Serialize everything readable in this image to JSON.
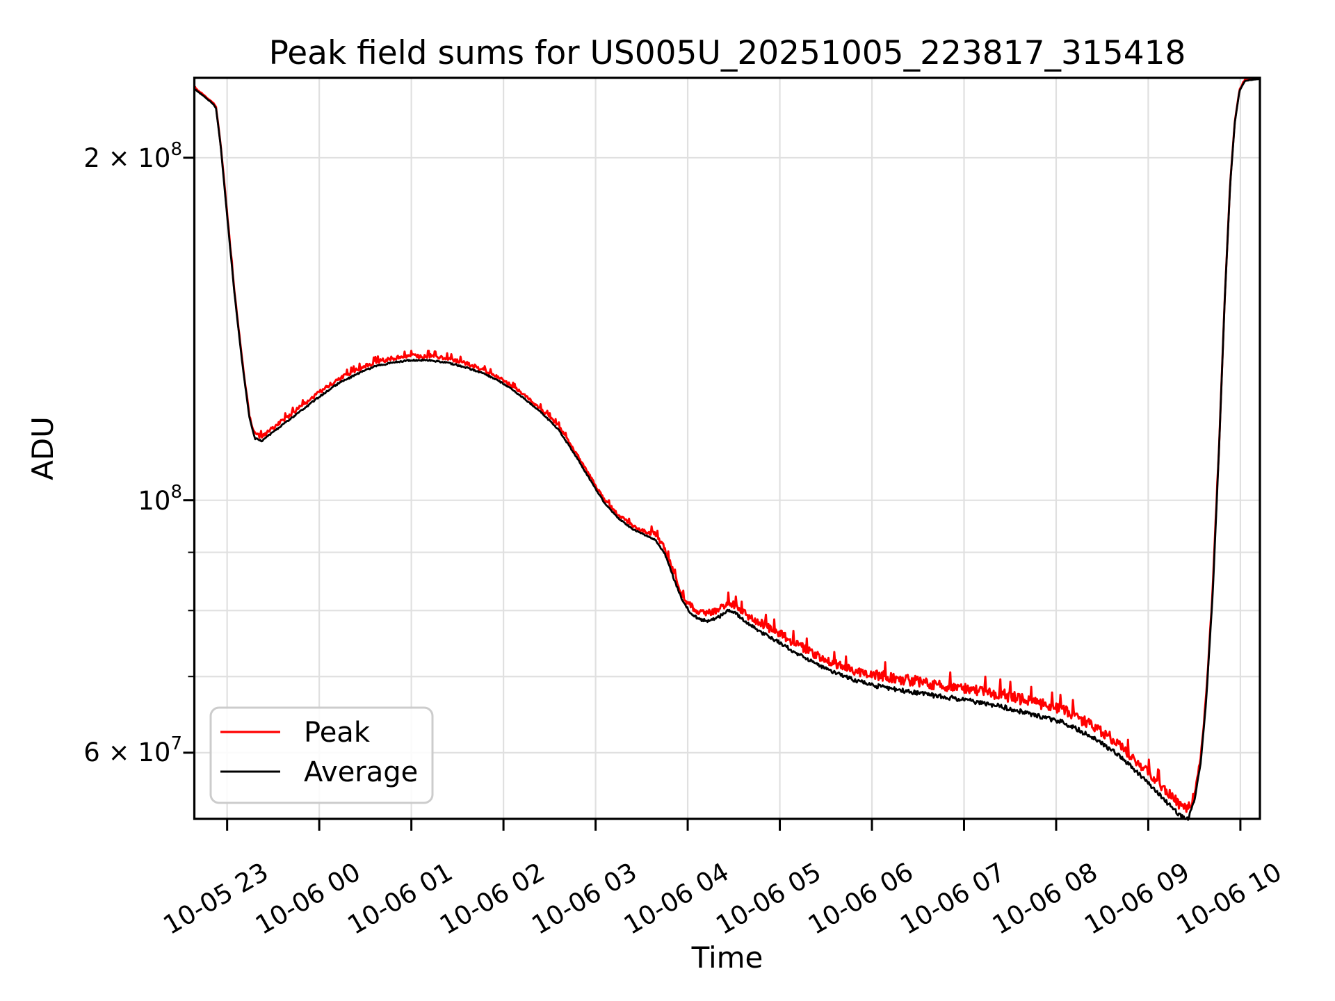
{
  "figure": {
    "background": "#ffffff",
    "frame_color": "#000000",
    "grid_color": "#e0e0e0"
  },
  "legend": {
    "entries": [
      {
        "label": "Peak",
        "color": "#ff0000"
      },
      {
        "label": "Average",
        "color": "#000000"
      }
    ]
  },
  "chart_data": {
    "type": "line",
    "title": "Peak field sums for US005U_20251005_223817_315418",
    "xlabel": "Time",
    "ylabel": "ADU",
    "yscale": "log",
    "grid": true,
    "legend_position": "lower-left",
    "x_unit": "hours since 2025-10-05 00:00",
    "xlim": [
      22.644,
      34.212
    ],
    "ylim": [
      52480000,
      235100000
    ],
    "x_ticks": [
      {
        "t": 23,
        "label": "10-05 23"
      },
      {
        "t": 24,
        "label": "10-06 00"
      },
      {
        "t": 25,
        "label": "10-06 01"
      },
      {
        "t": 26,
        "label": "10-06 02"
      },
      {
        "t": 27,
        "label": "10-06 03"
      },
      {
        "t": 28,
        "label": "10-06 04"
      },
      {
        "t": 29,
        "label": "10-06 05"
      },
      {
        "t": 30,
        "label": "10-06 06"
      },
      {
        "t": 31,
        "label": "10-06 07"
      },
      {
        "t": 32,
        "label": "10-06 08"
      },
      {
        "t": 33,
        "label": "10-06 09"
      },
      {
        "t": 34,
        "label": "10-06 10"
      }
    ],
    "y_ticks": [
      {
        "value": 200000000,
        "mantissa": "2 × 10",
        "exp": "8"
      },
      {
        "value": 100000000,
        "mantissa": "10",
        "exp": "8"
      },
      {
        "value": 60000000,
        "mantissa": "6 × 10",
        "exp": "7"
      }
    ],
    "y_minor_gridlines": [
      90000000,
      80000000,
      70000000
    ],
    "series": [
      {
        "name": "Peak",
        "color": "#ff0000",
        "definition": "average_plus_noise_envelope",
        "noise_segments": [
          {
            "until": 22.95,
            "amp": 0.003
          },
          {
            "until": 23.3,
            "amp": 0.006
          },
          {
            "until": 25.7,
            "amp": 0.011
          },
          {
            "until": 27.6,
            "amp": 0.009
          },
          {
            "until": 28.0,
            "amp": 0.014
          },
          {
            "until": 28.8,
            "amp": 0.02
          },
          {
            "until": 30.0,
            "amp": 0.024
          },
          {
            "until": 31.2,
            "amp": 0.03
          },
          {
            "until": 32.6,
            "amp": 0.032
          },
          {
            "until": 33.45,
            "amp": 0.028
          },
          {
            "until": 33.75,
            "amp": 0.012
          },
          {
            "until": 34.3,
            "amp": 0.0025
          }
        ]
      },
      {
        "name": "Average",
        "color": "#000000",
        "points": [
          [
            22.644,
            230000000
          ],
          [
            22.75,
            226500000
          ],
          [
            22.85,
            223000000
          ],
          [
            22.88,
            221000000
          ],
          [
            22.93,
            205000000
          ],
          [
            23.0,
            178000000
          ],
          [
            23.08,
            152000000
          ],
          [
            23.16,
            133000000
          ],
          [
            23.24,
            118500000
          ],
          [
            23.3,
            113500000
          ],
          [
            23.38,
            113000000
          ],
          [
            23.5,
            115000000
          ],
          [
            23.65,
            117500000
          ],
          [
            23.8,
            120000000
          ],
          [
            24.0,
            123500000
          ],
          [
            24.2,
            126800000
          ],
          [
            24.4,
            129200000
          ],
          [
            24.6,
            131300000
          ],
          [
            24.8,
            132400000
          ],
          [
            25.0,
            133000000
          ],
          [
            25.2,
            133000000
          ],
          [
            25.4,
            132300000
          ],
          [
            25.6,
            131000000
          ],
          [
            25.8,
            129300000
          ],
          [
            26.0,
            126800000
          ],
          [
            26.2,
            123500000
          ],
          [
            26.4,
            119800000
          ],
          [
            26.6,
            115500000
          ],
          [
            26.8,
            109000000
          ],
          [
            26.9,
            105700000
          ],
          [
            27.0,
            102500000
          ],
          [
            27.1,
            99500000
          ],
          [
            27.25,
            96500000
          ],
          [
            27.4,
            94500000
          ],
          [
            27.55,
            93200000
          ],
          [
            27.65,
            92500000
          ],
          [
            27.75,
            90000000
          ],
          [
            27.85,
            85500000
          ],
          [
            27.95,
            81500000
          ],
          [
            28.05,
            79500000
          ],
          [
            28.15,
            78700000
          ],
          [
            28.25,
            78600000
          ],
          [
            28.35,
            79300000
          ],
          [
            28.44,
            80400000
          ],
          [
            28.52,
            79800000
          ],
          [
            28.62,
            78500000
          ],
          [
            28.8,
            76800000
          ],
          [
            29.0,
            75200000
          ],
          [
            29.2,
            73500000
          ],
          [
            29.4,
            72000000
          ],
          [
            29.6,
            70800000
          ],
          [
            29.8,
            69800000
          ],
          [
            30.0,
            69100000
          ],
          [
            30.3,
            68400000
          ],
          [
            30.6,
            67800000
          ],
          [
            31.0,
            67100000
          ],
          [
            31.4,
            66200000
          ],
          [
            31.8,
            65000000
          ],
          [
            32.1,
            64000000
          ],
          [
            32.4,
            62200000
          ],
          [
            32.7,
            59800000
          ],
          [
            33.0,
            56700000
          ],
          [
            33.2,
            54500000
          ],
          [
            33.35,
            53000000
          ],
          [
            33.43,
            52700000
          ],
          [
            33.5,
            54500000
          ],
          [
            33.57,
            59000000
          ],
          [
            33.63,
            67000000
          ],
          [
            33.7,
            83000000
          ],
          [
            33.77,
            112000000
          ],
          [
            33.83,
            150000000
          ],
          [
            33.89,
            190000000
          ],
          [
            33.94,
            215000000
          ],
          [
            33.99,
            229000000
          ],
          [
            34.05,
            233800000
          ],
          [
            34.212,
            234700000
          ]
        ]
      }
    ]
  }
}
